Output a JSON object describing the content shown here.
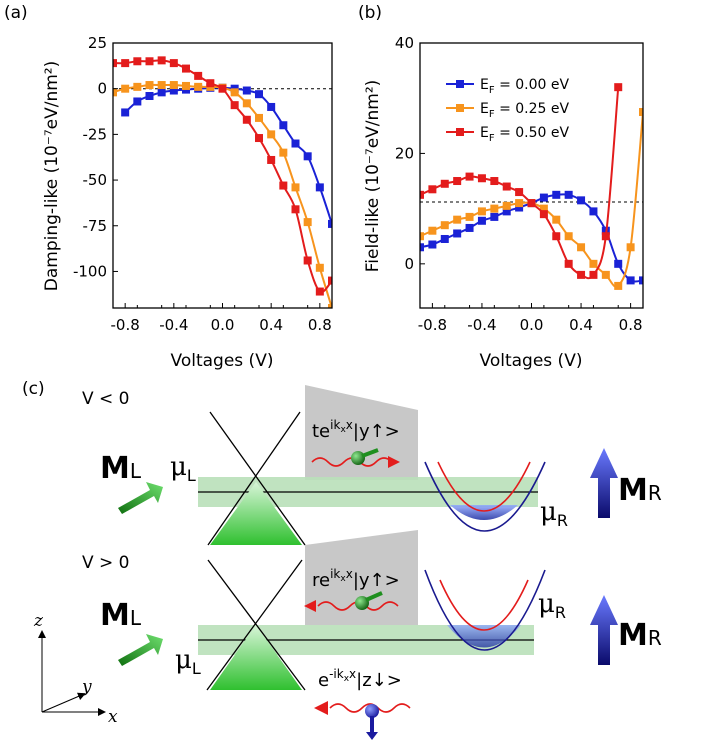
{
  "panels": {
    "a": "(a)",
    "b": "(b)",
    "c": "(c)"
  },
  "chart_data": [
    {
      "type": "line",
      "panel": "(a)",
      "xlabel": "Voltages (V)",
      "ylabel": "Damping-like (10⁻⁷eV/nm²)",
      "xlim": [
        -0.9,
        0.9
      ],
      "ylim": [
        -120,
        25
      ],
      "xticks": [
        -0.8,
        -0.4,
        0.0,
        0.4,
        0.8
      ],
      "xtick_labels": [
        "-0.8",
        "-0.4",
        "0.0",
        "0.4",
        "0.8"
      ],
      "yticks": [
        25,
        0,
        -25,
        -50,
        -75,
        -100
      ],
      "ytick_labels": [
        "25",
        "0",
        "-25",
        "-50",
        "-75",
        "-100"
      ],
      "reference_line_y": 0,
      "series": [
        {
          "name": "E_F = 0.00 eV",
          "color": "#1a22d6",
          "x": [
            -0.8,
            -0.7,
            -0.6,
            -0.5,
            -0.4,
            -0.3,
            -0.2,
            -0.1,
            0.0,
            0.1,
            0.2,
            0.3,
            0.4,
            0.5,
            0.6,
            0.7,
            0.8,
            0.9
          ],
          "y": [
            -13,
            -7,
            -4,
            -2,
            -1,
            -0.5,
            0,
            0.5,
            0.5,
            0,
            -1,
            -3,
            -10,
            -20,
            -30,
            -37,
            -54,
            -74
          ]
        },
        {
          "name": "E_F = 0.25 eV",
          "color": "#f7941d",
          "x": [
            -0.9,
            -0.8,
            -0.7,
            -0.6,
            -0.5,
            -0.4,
            -0.3,
            -0.2,
            -0.1,
            0.0,
            0.1,
            0.2,
            0.3,
            0.4,
            0.5,
            0.6,
            0.7,
            0.8,
            0.9
          ],
          "y": [
            -2,
            0,
            1,
            2,
            2,
            2,
            1.5,
            1,
            1,
            0.5,
            -2,
            -8,
            -16,
            -25,
            -35,
            -54,
            -73,
            -98,
            -120
          ]
        },
        {
          "name": "E_F = 0.50 eV",
          "color": "#e31c1c",
          "x": [
            -0.9,
            -0.8,
            -0.7,
            -0.6,
            -0.5,
            -0.4,
            -0.3,
            -0.2,
            -0.1,
            0.0,
            0.1,
            0.2,
            0.3,
            0.4,
            0.5,
            0.6,
            0.7,
            0.8,
            0.9
          ],
          "y": [
            14,
            14,
            15,
            15,
            15.5,
            14,
            11,
            7,
            3,
            0,
            -9,
            -17,
            -27,
            -39,
            -53,
            -66,
            -94,
            -111,
            -105
          ]
        }
      ]
    },
    {
      "type": "line",
      "panel": "(b)",
      "xlabel": "Voltages (V)",
      "ylabel": "Field-like (10⁻⁷eV/nm²)",
      "xlim": [
        -0.9,
        0.9
      ],
      "ylim": [
        -8,
        40
      ],
      "xticks": [
        -0.8,
        -0.4,
        0.0,
        0.4,
        0.8
      ],
      "xtick_labels": [
        "-0.8",
        "-0.4",
        "0.0",
        "0.4",
        "0.8"
      ],
      "yticks": [
        40,
        20,
        0
      ],
      "ytick_labels": [
        "40",
        "20",
        "0"
      ],
      "reference_line_y": 11.2,
      "legend": {
        "position": "top-left",
        "entries": [
          "E",
          "E",
          "E"
        ],
        "subscripts": [
          "F",
          "F",
          "F"
        ],
        "values": [
          "= 0.00 eV",
          "= 0.25 eV",
          "= 0.50 eV"
        ]
      },
      "series": [
        {
          "name": "E_F = 0.00 eV",
          "color": "#1a22d6",
          "x": [
            -0.9,
            -0.8,
            -0.7,
            -0.6,
            -0.5,
            -0.4,
            -0.3,
            -0.2,
            -0.1,
            0.0,
            0.1,
            0.2,
            0.3,
            0.4,
            0.5,
            0.6,
            0.7,
            0.8,
            0.9
          ],
          "y": [
            3,
            3.5,
            4.5,
            5.5,
            6.5,
            7.8,
            8.5,
            9.5,
            10.2,
            11,
            12,
            12.5,
            12.5,
            11.5,
            9.5,
            6,
            0,
            -3,
            -3
          ]
        },
        {
          "name": "E_F = 0.25 eV",
          "color": "#f7941d",
          "x": [
            -0.9,
            -0.8,
            -0.7,
            -0.6,
            -0.5,
            -0.4,
            -0.3,
            -0.2,
            -0.1,
            0.0,
            0.1,
            0.2,
            0.3,
            0.4,
            0.5,
            0.6,
            0.7,
            0.8,
            0.9
          ],
          "y": [
            5,
            6,
            7,
            8,
            8.5,
            9.5,
            10,
            10.5,
            11,
            11,
            10,
            8,
            5,
            3,
            0,
            -2,
            -4,
            3,
            27.5
          ]
        },
        {
          "name": "E_F = 0.50 eV",
          "color": "#e31c1c",
          "x": [
            -0.9,
            -0.8,
            -0.7,
            -0.6,
            -0.5,
            -0.4,
            -0.3,
            -0.2,
            -0.1,
            0.0,
            0.1,
            0.2,
            0.3,
            0.4,
            0.5,
            0.6,
            0.7
          ],
          "y": [
            12.5,
            13.5,
            14.5,
            15,
            15.8,
            15.5,
            15,
            14,
            13,
            11,
            9,
            5,
            0,
            -2,
            -2,
            5,
            32
          ]
        }
      ]
    }
  ],
  "diagram": {
    "top": {
      "condition": "V < 0",
      "ML": "M",
      "ML_sub": "L",
      "MR": "M",
      "MR_sub": "R",
      "muL": "μ",
      "muL_sub": "L",
      "muR": "μ",
      "muR_sub": "R",
      "state_prefix": "te",
      "state_exp": "ik",
      "state_exp_sub": "x",
      "state_exp_end": "x",
      "state_ket": "|y↑>"
    },
    "bottom": {
      "condition": "V > 0",
      "ML": "M",
      "ML_sub": "L",
      "MR": "M",
      "MR_sub": "R",
      "muL": "μ",
      "muL_sub": "L",
      "muR": "μ",
      "muR_sub": "R",
      "state_prefix": "re",
      "state_exp": "ik",
      "state_exp_sub": "x",
      "state_exp_end": "x",
      "state_ket": "|y↑>",
      "trans_prefix": "e",
      "trans_exp": "-ik",
      "trans_exp_sub": "x",
      "trans_exp_end": "x",
      "trans_ket": "|z↓>"
    },
    "axes": {
      "z": "z",
      "y": "y",
      "x": "x"
    },
    "colors": {
      "arrow_left": "#1f8f1f",
      "arrow_right": "#1a1a8f",
      "band": "#9fd39f",
      "cone": "#5ad65a",
      "parabola": "#1a1a8f",
      "parabola_inner": "#e31c1c",
      "wave": "#e31c1c"
    }
  }
}
